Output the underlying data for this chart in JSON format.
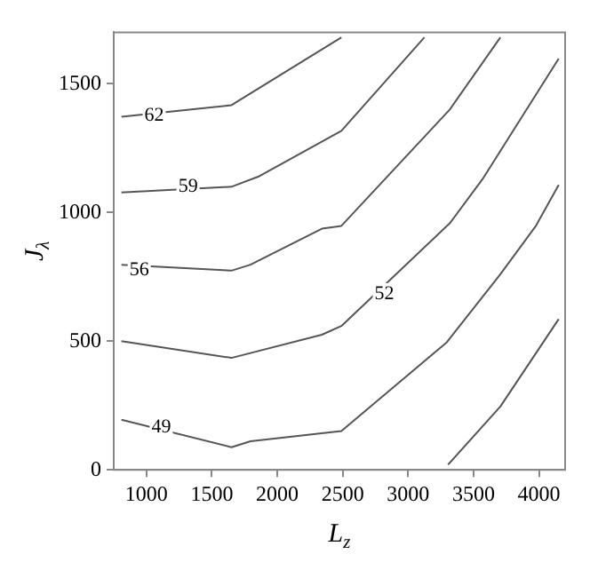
{
  "chart_data": {
    "type": "line",
    "xlabel": "L$_{z}$",
    "ylabel": "J$_{λ}$",
    "xlim": [
      750,
      4200
    ],
    "ylim": [
      0,
      1700
    ],
    "xticks": [
      1000,
      1500,
      2000,
      2500,
      3000,
      3500,
      4000
    ],
    "yticks": [
      0,
      500,
      1000,
      1500
    ],
    "grid": false,
    "legend": false,
    "marker": "none",
    "line_style": "solid",
    "series": [
      {
        "color": "#555555",
        "x": [
          809,
          1650,
          2490
        ],
        "values": [
          1372,
          1417,
          1680
        ]
      },
      {
        "color": "#555555",
        "x": [
          809,
          1650,
          1863,
          2490,
          3124
        ],
        "values": [
          1078,
          1100,
          1141,
          1317,
          1680
        ]
      },
      {
        "color": "#555555",
        "x": [
          809,
          1650,
          1795,
          2341,
          2490,
          3320,
          3705
        ],
        "values": [
          797,
          774,
          797,
          937,
          948,
          1401,
          1680
        ]
      },
      {
        "color": "#555555",
        "x": [
          809,
          1650,
          2341,
          2490,
          3320,
          3568,
          4151
        ],
        "values": [
          500,
          435,
          525,
          559,
          959,
          1129,
          1598
        ]
      },
      {
        "color": "#555555",
        "x": [
          809,
          1650,
          1795,
          2490,
          3296,
          3705,
          3978,
          4151
        ],
        "values": [
          195,
          88,
          111,
          151,
          496,
          760,
          949,
          1107
        ]
      },
      {
        "color": "#555555",
        "x": [
          3305,
          3705,
          4151
        ],
        "values": [
          20,
          246,
          586
        ]
      }
    ],
    "annotations": [
      {
        "text": "62",
        "x": 1059,
        "y": 1378
      },
      {
        "text": "59",
        "x": 1318,
        "y": 1100
      },
      {
        "text": "56",
        "x": 945,
        "y": 776
      },
      {
        "text": "52",
        "x": 2818,
        "y": 684
      },
      {
        "text": "49",
        "x": 1113,
        "y": 165
      }
    ]
  }
}
